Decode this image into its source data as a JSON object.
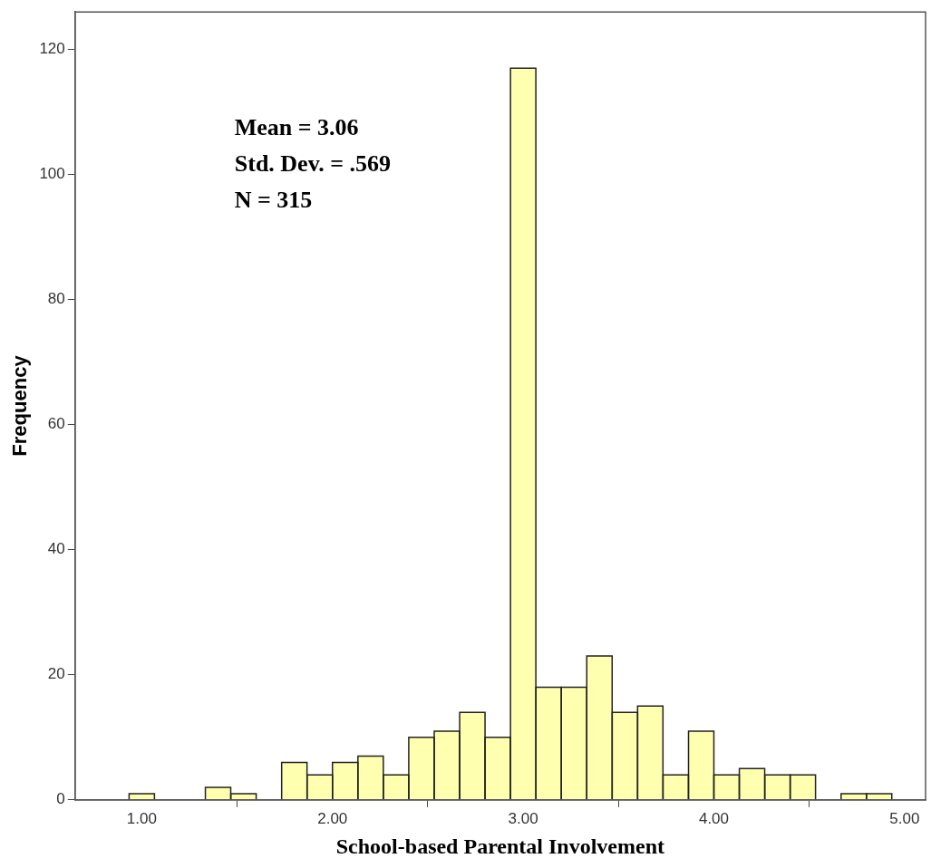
{
  "chart_data": {
    "type": "histogram",
    "xlabel": "School-based Parental Involvement",
    "ylabel": "Frequency",
    "bins": [
      0.933,
      1.067,
      1.2,
      1.333,
      1.467,
      1.6,
      1.733,
      1.867,
      2,
      2.133,
      2.267,
      2.4,
      2.533,
      2.667,
      2.8,
      2.933,
      3.067,
      3.2,
      3.333,
      3.467,
      3.6,
      3.733,
      3.867,
      4,
      4.133,
      4.267,
      4.4,
      4.533,
      4.667,
      4.8,
      4.933
    ],
    "values": [
      1,
      0,
      0,
      2,
      1,
      0,
      6,
      4,
      6,
      7,
      4,
      10,
      11,
      14,
      10,
      117,
      18,
      18,
      23,
      14,
      15,
      4,
      11,
      4,
      5,
      4,
      4,
      0,
      1,
      1
    ],
    "color": "#ffffb0",
    "xlim": [
      0.65,
      5.11
    ],
    "ylim": [
      0,
      126
    ],
    "xticks": [
      {
        "value": 1,
        "label": "1.00"
      },
      {
        "value": 2,
        "label": "2.00"
      },
      {
        "value": 3,
        "label": "3.00"
      },
      {
        "value": 4,
        "label": "4.00"
      },
      {
        "value": 5,
        "label": "5.00"
      }
    ],
    "yticks": [
      0,
      20,
      40,
      60,
      80,
      100,
      120
    ],
    "grid": false,
    "legend": false,
    "annotations": [
      "Mean = 3.06",
      "Std. Dev. = .569",
      "N = 315"
    ]
  }
}
